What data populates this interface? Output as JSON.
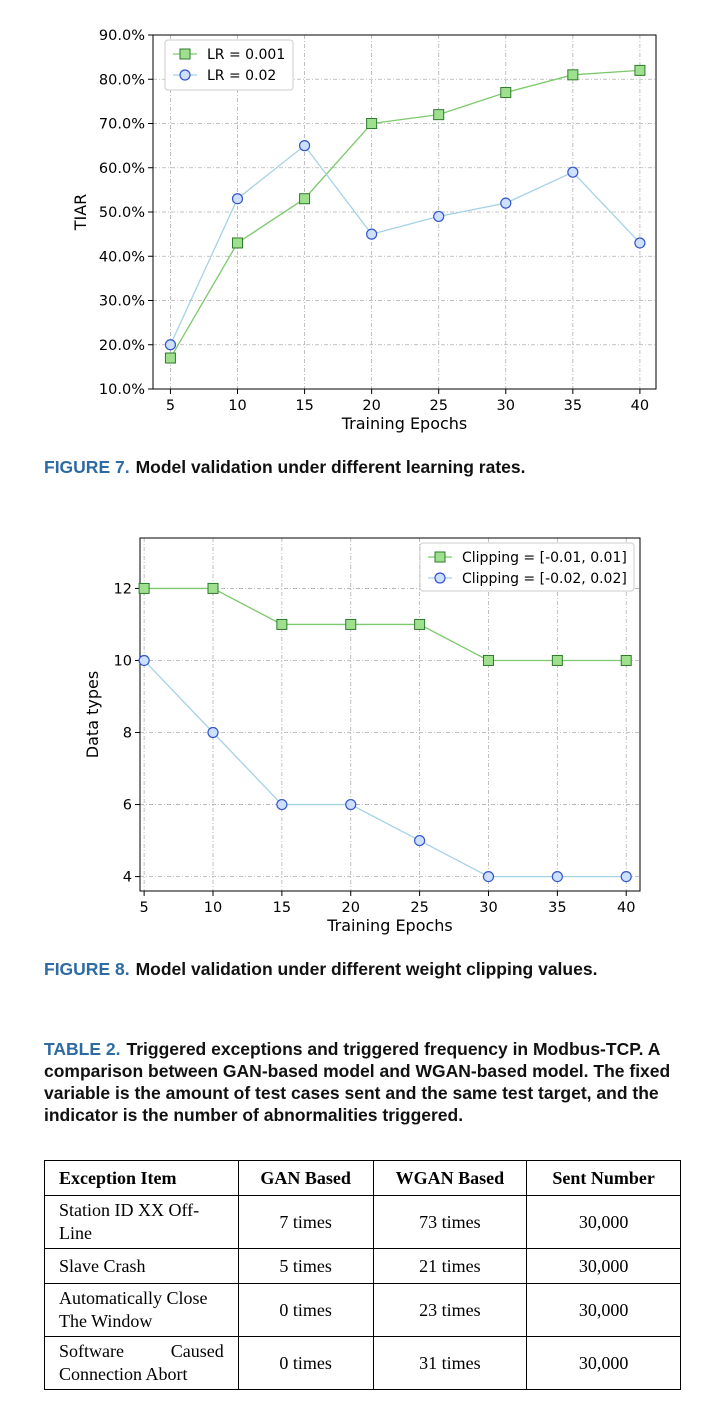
{
  "colors": {
    "series_a": "#7cc96b",
    "series_a_fill": "#9ee08e",
    "series_b": "#a6d2e6",
    "series_b_fill": "#cde0ff",
    "series_b_edge": "#3355cc",
    "series_a_edge": "#2d7a2d",
    "caption_label": "#2e6aa3"
  },
  "chart_data": [
    {
      "type": "line",
      "x": [
        5,
        10,
        15,
        20,
        25,
        30,
        35,
        40
      ],
      "xticks": [
        "5",
        "10",
        "15",
        "20",
        "25",
        "30",
        "35",
        "40"
      ],
      "yticks": [
        "10.0%",
        "20.0%",
        "30.0%",
        "40.0%",
        "50.0%",
        "60.0%",
        "70.0%",
        "80.0%",
        "90.0%"
      ],
      "ytick_values": [
        10,
        20,
        30,
        40,
        50,
        60,
        70,
        80,
        90
      ],
      "xlim": [
        3.7,
        41.2
      ],
      "ylim": [
        10,
        90
      ],
      "xlabel": "Training Epochs",
      "ylabel": "TIAR",
      "grid": true,
      "legend": "top-left",
      "series": [
        {
          "name": "LR = 0.001",
          "marker": "square",
          "values": [
            17,
            43,
            53,
            70,
            72,
            77,
            81,
            82
          ]
        },
        {
          "name": "LR = 0.02",
          "marker": "circle",
          "values": [
            20,
            53,
            65,
            45,
            49,
            52,
            59,
            43
          ]
        }
      ]
    },
    {
      "type": "line",
      "x": [
        5,
        10,
        15,
        20,
        25,
        30,
        35,
        40
      ],
      "xticks": [
        "5",
        "10",
        "15",
        "20",
        "25",
        "30",
        "35",
        "40"
      ],
      "yticks": [
        "4",
        "6",
        "8",
        "10",
        "12"
      ],
      "ytick_values": [
        4,
        6,
        8,
        10,
        12
      ],
      "xlim": [
        4.7,
        41.0
      ],
      "ylim": [
        3.6,
        13.4
      ],
      "xlabel": "Training Epochs",
      "ylabel": "Data types",
      "grid": true,
      "legend": "top-right",
      "series": [
        {
          "name": "Clipping = [-0.01, 0.01]",
          "marker": "square",
          "values": [
            12,
            12,
            11,
            11,
            11,
            10,
            10,
            10
          ]
        },
        {
          "name": "Clipping = [-0.02, 0.02]",
          "marker": "circle",
          "values": [
            10,
            8,
            6,
            6,
            5,
            4,
            4,
            4
          ]
        }
      ]
    }
  ],
  "figure7": {
    "label": "FIGURE 7.",
    "text": "Model validation under different learning rates."
  },
  "figure8": {
    "label": "FIGURE 8.",
    "text": "Model validation under different weight clipping values."
  },
  "table2": {
    "label": "TABLE 2.",
    "caption": "Triggered exceptions and triggered frequency in Modbus-TCP. A comparison between GAN-based model and WGAN-based model. The fixed variable is the amount of test cases sent and the same test target, and the indicator is the number of abnormalities triggered.",
    "headers": [
      "Exception Item",
      "GAN Based",
      "WGAN Based",
      "Sent Number"
    ],
    "rows": [
      [
        "Station ID XX Off-Line",
        "7 times",
        "73 times",
        "30,000"
      ],
      [
        "Slave Crash",
        "5 times",
        "21 times",
        "30,000"
      ],
      [
        "Automatically Close The Window",
        "0 times",
        "23 times",
        "30,000"
      ],
      [
        "Software Caused Connection Abort",
        "0 times",
        "31 times",
        "30,000"
      ]
    ]
  }
}
